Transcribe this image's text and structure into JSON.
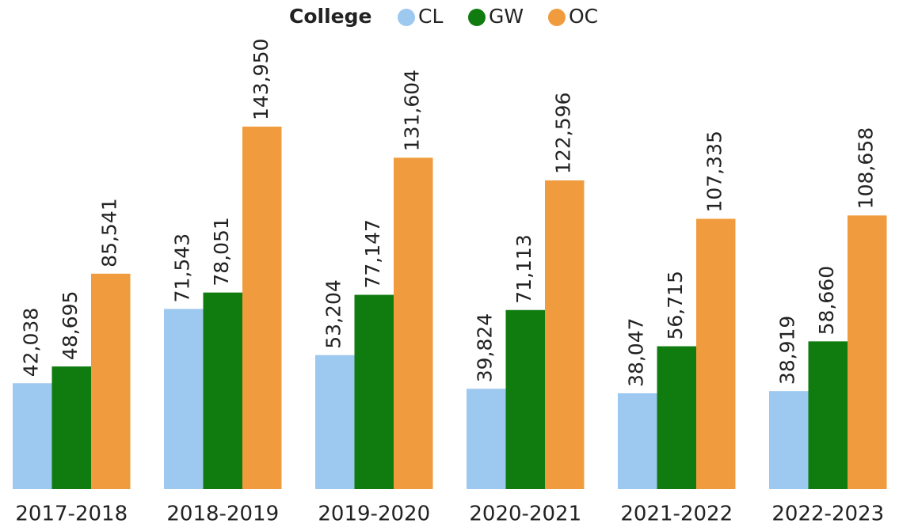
{
  "chart_data": {
    "type": "bar",
    "legend_title": "College",
    "categories": [
      "2017-2018",
      "2018-2019",
      "2019-2020",
      "2020-2021",
      "2021-2022",
      "2022-2023"
    ],
    "series": [
      {
        "name": "CL",
        "color": "#9dc8ef",
        "values": [
          42038,
          71543,
          53204,
          39824,
          38047,
          38919
        ],
        "value_labels": [
          "42,038",
          "71,543",
          "53,204",
          "39,824",
          "38,047",
          "38,919"
        ]
      },
      {
        "name": "GW",
        "color": "#107c10",
        "values": [
          48695,
          78051,
          77147,
          71113,
          56715,
          58660
        ],
        "value_labels": [
          "48,695",
          "78,051",
          "77,147",
          "71,113",
          "56,715",
          "58,660"
        ]
      },
      {
        "name": "OC",
        "color": "#f09c3e",
        "values": [
          85541,
          143950,
          131604,
          122596,
          107335,
          108658
        ],
        "value_labels": [
          "85,541",
          "143,950",
          "131,604",
          "122,596",
          "107,335",
          "108,658"
        ]
      }
    ],
    "legend": "top"
  }
}
